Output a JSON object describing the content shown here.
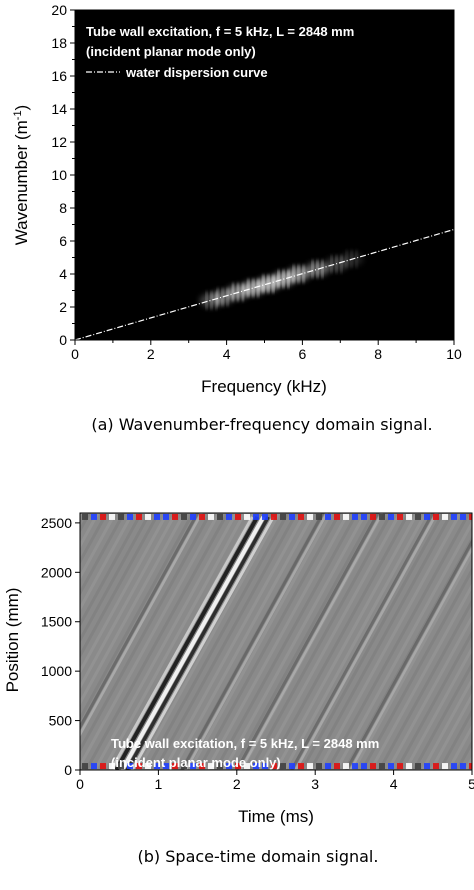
{
  "chart_data": [
    {
      "type": "heatmap",
      "colormap": "grayscale",
      "background": "#000000",
      "annotation_lines": [
        "Tube wall excitation, f = 5 kHz, L = 2848 mm",
        "(incident planar mode only)"
      ],
      "legend_entry": "water dispersion curve",
      "legend_placement": "top-left",
      "xlabel": "Frequency (kHz)",
      "ylabel": "Wavenumber (m",
      "ylabel_sup": "-1",
      "ylabel_close": ")",
      "xlim": [
        0,
        10
      ],
      "ylim": [
        0,
        20
      ],
      "x_ticks": [
        "0",
        "2",
        "4",
        "6",
        "8",
        "10"
      ],
      "y_ticks": [
        "0",
        "2",
        "4",
        "6",
        "8",
        "10",
        "12",
        "14",
        "16",
        "18",
        "20"
      ],
      "dispersion_curve": {
        "x": [
          0,
          10
        ],
        "y": [
          0,
          6.7
        ]
      },
      "energy_blobs": [
        {
          "x": 3.6,
          "y": 2.4,
          "intensity": 0.45
        },
        {
          "x": 3.9,
          "y": 2.6,
          "intensity": 0.55
        },
        {
          "x": 4.3,
          "y": 2.9,
          "intensity": 0.8
        },
        {
          "x": 4.7,
          "y": 3.15,
          "intensity": 0.9
        },
        {
          "x": 5.1,
          "y": 3.4,
          "intensity": 1.0
        },
        {
          "x": 5.5,
          "y": 3.7,
          "intensity": 0.95
        },
        {
          "x": 5.9,
          "y": 4.0,
          "intensity": 0.8
        },
        {
          "x": 6.4,
          "y": 4.3,
          "intensity": 0.65
        },
        {
          "x": 6.9,
          "y": 4.6,
          "intensity": 0.35
        },
        {
          "x": 7.3,
          "y": 4.9,
          "intensity": 0.2
        }
      ],
      "caption": "(a) Wavenumber-frequency domain signal."
    },
    {
      "type": "heatmap",
      "colormap": "gray with red/blue saturation",
      "background": "#8a8a8a",
      "annotation_lines": [
        "Tube wall excitation, f = 5 kHz, L = 2848 mm",
        "(incident planar mode only)"
      ],
      "xlabel": "Time (ms)",
      "ylabel": "Position (mm)",
      "xlim": [
        0,
        5
      ],
      "ylim": [
        0,
        2600
      ],
      "x_ticks": [
        "0",
        "1",
        "2",
        "3",
        "4",
        "5"
      ],
      "y_ticks": [
        "0",
        "500",
        "1000",
        "1500",
        "2000",
        "2500"
      ],
      "main_wavefront": {
        "t_start": 0.5,
        "pos_start": 0,
        "t_end": 2.3,
        "pos_end": 2560
      },
      "secondary_wavefronts": [
        {
          "t_start": 1.3,
          "t_end": 3.1
        },
        {
          "t_start": 2.0,
          "t_end": 3.8
        },
        {
          "t_start": 2.7,
          "t_end": 4.5
        },
        {
          "t_start": 3.4,
          "t_end": 5.2
        },
        {
          "t_start": -0.3,
          "t_end": 1.5
        }
      ],
      "caption": "(b) Space-time domain signal."
    }
  ]
}
